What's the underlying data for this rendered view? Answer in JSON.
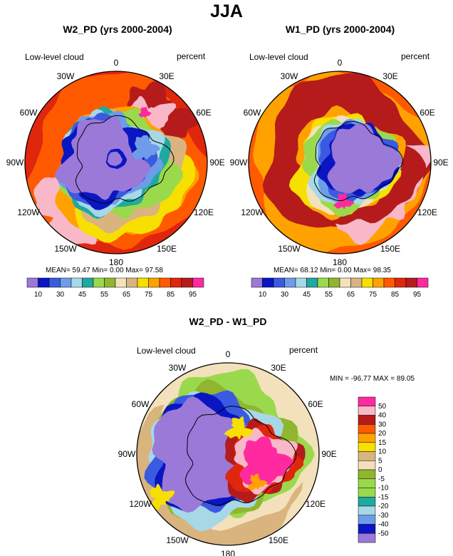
{
  "title": "JJA",
  "colors": {
    "c10": "#9a79d8",
    "c20": "#0a16c2",
    "c30": "#3a5ae0",
    "c40": "#6e9ce8",
    "c45": "#a6d8e8",
    "c50": "#1fa9a0",
    "c55": "#9bd94c",
    "c60": "#8fb62e",
    "c65": "#f2e1bb",
    "c70": "#d9b47f",
    "c75": "#f7e000",
    "c80": "#ffa200",
    "c85": "#ff5a00",
    "c90": "#e0260d",
    "c95": "#b51b1b",
    "c100": "#f8b8c8",
    "magenta": "#ff2aa0"
  },
  "chart_data": [
    {
      "type": "polar-contour-map",
      "id": "w2",
      "title": "W2_PD (yrs 2000-2004)",
      "variable": "Low-level cloud",
      "units": "percent",
      "longitude_labels": [
        "0",
        "30E",
        "60E",
        "90E",
        "120E",
        "150E",
        "180",
        "150W",
        "120W",
        "90W",
        "60W",
        "30W"
      ],
      "stats": {
        "mean": "59.47",
        "min": "0.00",
        "max": "97.58",
        "text": "MEAN= 59.47  Min=   0.00  Max= 97.58"
      },
      "colorbar": {
        "levels": [
          10,
          20,
          30,
          40,
          45,
          50,
          55,
          60,
          65,
          70,
          75,
          80,
          85,
          90,
          95
        ],
        "tick_labels": [
          "10",
          "30",
          "45",
          "55",
          "65",
          "75",
          "85",
          "95"
        ]
      }
    },
    {
      "type": "polar-contour-map",
      "id": "w1",
      "title": "W1_PD (yrs 2000-2004)",
      "variable": "Low-level cloud",
      "units": "percent",
      "longitude_labels": [
        "0",
        "30E",
        "60E",
        "90E",
        "120E",
        "150E",
        "180",
        "150W",
        "120W",
        "90W",
        "60W",
        "30W"
      ],
      "stats": {
        "mean": "68.12",
        "min": "0.00",
        "max": "98.35",
        "text": "MEAN= 68.12  Min=   0.00  Max= 98.35"
      },
      "colorbar": {
        "levels": [
          10,
          20,
          30,
          40,
          45,
          50,
          55,
          60,
          65,
          70,
          75,
          80,
          85,
          90,
          95
        ],
        "tick_labels": [
          "10",
          "30",
          "45",
          "55",
          "65",
          "75",
          "85",
          "95"
        ]
      }
    },
    {
      "type": "polar-contour-map",
      "id": "diff",
      "title": "W2_PD - W1_PD",
      "variable": "Low-level cloud",
      "units": "percent",
      "longitude_labels": [
        "0",
        "30E",
        "60E",
        "90E",
        "120E",
        "150E",
        "180",
        "150W",
        "120W",
        "90W",
        "60W",
        "30W"
      ],
      "stats": {
        "min": "-96.77",
        "max": "89.05",
        "text": "MIN = -96.77 MAX =  89.05"
      },
      "colorbar": {
        "orientation": "vertical",
        "tick_labels": [
          "50",
          "40",
          "30",
          "20",
          "15",
          "10",
          "5",
          "0",
          "-5",
          "-10",
          "-15",
          "-20",
          "-30",
          "-40",
          "-50"
        ]
      }
    }
  ]
}
